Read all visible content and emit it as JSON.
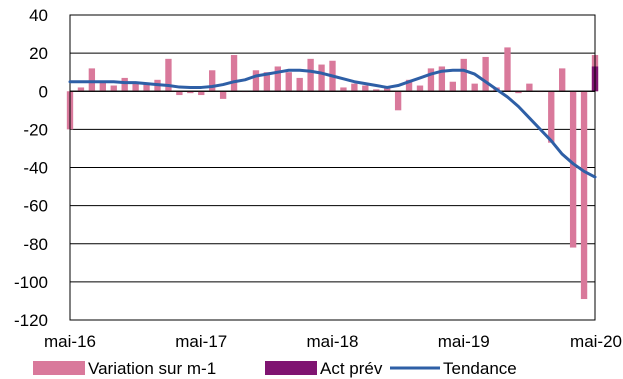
{
  "chart_data": {
    "type": "bar",
    "y_ticks": [
      "40",
      "20",
      "0",
      "-20",
      "-40",
      "-60",
      "-80",
      "-100",
      "-120"
    ],
    "x_ticks": [
      "mai-16",
      "mai-17",
      "mai-18",
      "mai-19",
      "mai-20"
    ],
    "ylim": [
      -120,
      40
    ],
    "grid": true,
    "legend_position": "bottom",
    "categories": [
      "mai-16",
      "juin-16",
      "juil-16",
      "août-16",
      "sept-16",
      "oct-16",
      "nov-16",
      "déc-16",
      "janv-17",
      "févr-17",
      "mars-17",
      "avr-17",
      "mai-17",
      "juin-17",
      "juil-17",
      "août-17",
      "sept-17",
      "oct-17",
      "nov-17",
      "déc-17",
      "janv-18",
      "févr-18",
      "mars-18",
      "avr-18",
      "mai-18",
      "juin-18",
      "juil-18",
      "août-18",
      "sept-18",
      "oct-18",
      "nov-18",
      "déc-18",
      "janv-19",
      "févr-19",
      "mars-19",
      "avr-19",
      "mai-19",
      "juin-19",
      "juil-19",
      "août-19",
      "sept-19",
      "oct-19",
      "nov-19",
      "déc-19",
      "janv-20",
      "févr-20",
      "mars-20",
      "avr-20",
      "mai-20"
    ],
    "series": [
      {
        "name": "Variation sur m-1",
        "kind": "bar",
        "color": "#d9799b",
        "values": [
          -20,
          2,
          12,
          5,
          3,
          7,
          5,
          4,
          6,
          17,
          -2,
          -1,
          -2,
          11,
          -4,
          19,
          0,
          11,
          10,
          13,
          10,
          7,
          17,
          14,
          16,
          2,
          4,
          3,
          1,
          2,
          -10,
          6,
          3,
          12,
          13,
          5,
          17,
          4,
          18,
          2,
          23,
          -1,
          4,
          0,
          -27,
          12,
          -82,
          -109,
          19
        ]
      },
      {
        "name": "Act prév",
        "kind": "bar",
        "color": "#7f1471",
        "values": [
          null,
          null,
          null,
          null,
          null,
          null,
          null,
          null,
          null,
          null,
          null,
          null,
          null,
          null,
          null,
          null,
          null,
          null,
          null,
          null,
          null,
          null,
          null,
          null,
          null,
          null,
          null,
          null,
          null,
          null,
          null,
          null,
          null,
          null,
          null,
          null,
          null,
          null,
          null,
          null,
          null,
          null,
          null,
          null,
          null,
          null,
          null,
          null,
          13
        ]
      },
      {
        "name": "Tendance",
        "kind": "line",
        "color": "#2e5fa6",
        "values": [
          5,
          5,
          5,
          5,
          5,
          4.5,
          4.5,
          4,
          3.5,
          3,
          2.2,
          2,
          2,
          2.5,
          3.5,
          5,
          6,
          8,
          9,
          10,
          11,
          11,
          10.5,
          9.5,
          8,
          6.5,
          5,
          4,
          3,
          2,
          3,
          5,
          7,
          9,
          10.5,
          11,
          11,
          9,
          5,
          1,
          -3,
          -8,
          -14,
          -20,
          -26,
          -33,
          -38,
          -42,
          -45
        ]
      }
    ]
  }
}
